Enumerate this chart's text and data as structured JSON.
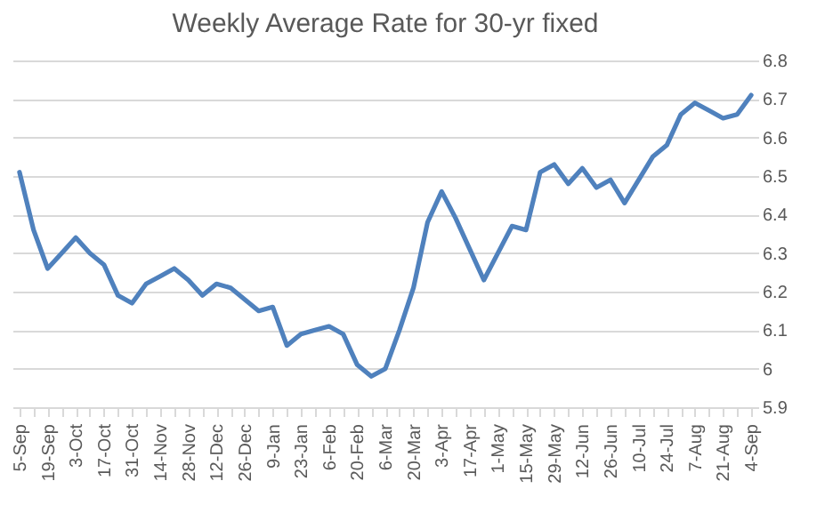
{
  "chart_data": {
    "type": "line",
    "title": "Weekly Average Rate for 30-yr fixed",
    "categories": [
      "5-Sep",
      null,
      "19-Sep",
      null,
      "3-Oct",
      null,
      "17-Oct",
      null,
      "31-Oct",
      null,
      "14-Nov",
      null,
      "28-Nov",
      null,
      "12-Dec",
      null,
      "26-Dec",
      null,
      "9-Jan",
      null,
      "23-Jan",
      null,
      "6-Feb",
      null,
      "20-Feb",
      null,
      "6-Mar",
      null,
      "20-Mar",
      null,
      "3-Apr",
      null,
      "17-Apr",
      null,
      "1-May",
      null,
      "15-May",
      null,
      "29-May",
      null,
      "12-Jun",
      null,
      "26-Jun",
      null,
      "10-Jul",
      null,
      "24-Jul",
      null,
      "7-Aug",
      null,
      "21-Aug",
      null,
      "4-Sep"
    ],
    "series": [
      {
        "color": "#4f81bd",
        "values": [
          6.51,
          6.36,
          6.26,
          6.3,
          6.34,
          6.3,
          6.27,
          6.19,
          6.17,
          6.22,
          6.24,
          6.26,
          6.23,
          6.19,
          6.22,
          6.21,
          6.18,
          6.15,
          6.16,
          6.06,
          6.09,
          6.1,
          6.11,
          6.09,
          6.01,
          5.98,
          6.0,
          6.1,
          6.21,
          6.38,
          6.46,
          6.39,
          6.31,
          6.23,
          6.3,
          6.37,
          6.36,
          6.51,
          6.53,
          6.48,
          6.52,
          6.47,
          6.49,
          6.43,
          6.49,
          6.55,
          6.58,
          6.66,
          6.69,
          6.67,
          6.65,
          6.66,
          6.71
        ]
      }
    ],
    "ylim": [
      5.9,
      6.8
    ],
    "yticks": [
      5.9,
      6,
      6.1,
      6.2,
      6.3,
      6.4,
      6.5,
      6.6,
      6.7,
      6.8
    ],
    "grid": "y",
    "marker": "none",
    "line_style": "solid"
  }
}
